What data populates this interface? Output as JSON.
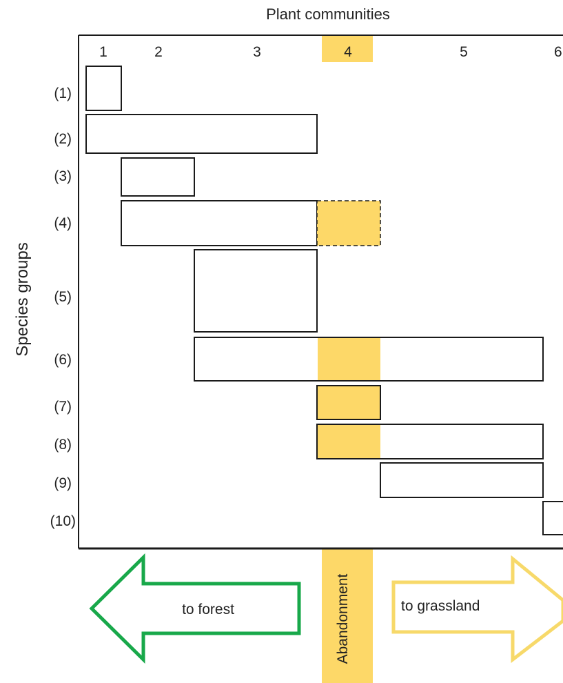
{
  "title": "Plant communities",
  "y_axis_label": "Species groups",
  "community_labels": [
    "1",
    "2",
    "3",
    "4",
    "5",
    "6"
  ],
  "highlighted_community": "4",
  "group_labels": [
    "(1)",
    "(2)",
    "(3)",
    "(4)",
    "(5)",
    "(6)",
    "(7)",
    "(8)",
    "(9)",
    "(10)"
  ],
  "arrows": {
    "left": "to forest",
    "center": "Abandonment",
    "right": "to grassland"
  },
  "colors": {
    "highlight": "#fdd868",
    "forest_arrow": "#18a84a",
    "grassland_arrow": "#f7d96a",
    "outline": "#1a1a1a"
  }
}
